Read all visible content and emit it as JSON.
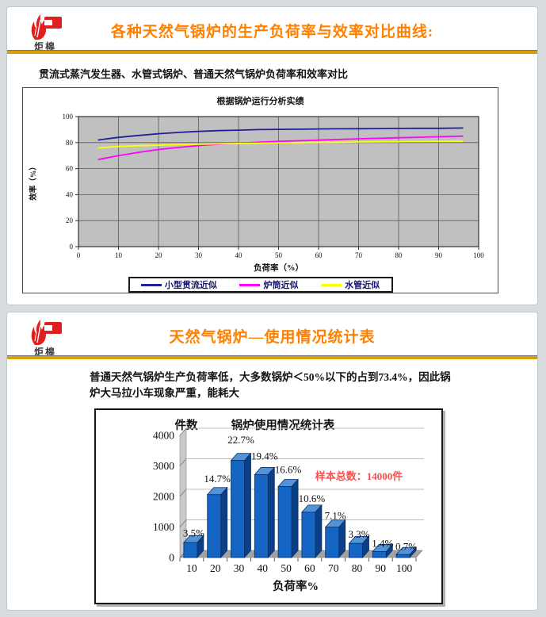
{
  "page": {
    "background": "#d9dcde"
  },
  "brand": {
    "logo_text": "炬槔",
    "logo_color": "#e01f1f"
  },
  "slide1": {
    "title": "各种天然气锅炉的生产负荷率与效率对比曲线:",
    "title_color": "#ff8000",
    "subtitle": "贯流式蒸汽发生器、水管式锅炉、普通天然气锅炉负荷率和效率对比"
  },
  "slide2": {
    "title": "天然气锅炉—使用情况统计表",
    "title_color": "#ff8000",
    "body_lines": [
      "普通天然气锅炉生产负荷率低，大多数锅炉＜50%以下的占到73.4%，因此锅",
      "炉大马拉小车现象严重，能耗大"
    ]
  },
  "chart_data": [
    {
      "type": "line",
      "title": "根据锅炉运行分析实绩",
      "xlabel": "负荷率（%）",
      "ylabel": "效率（%）",
      "xlim": [
        0,
        100
      ],
      "ylim": [
        0,
        100
      ],
      "x_ticks": [
        0,
        10,
        20,
        30,
        40,
        50,
        60,
        70,
        80,
        90,
        100
      ],
      "y_ticks": [
        0,
        20,
        40,
        60,
        80,
        100
      ],
      "plot_bg": "#c0c0c0",
      "grid": true,
      "legend_position": "bottom",
      "x": [
        5,
        10,
        15,
        20,
        25,
        30,
        35,
        40,
        45,
        50,
        55,
        60,
        65,
        70,
        75,
        80,
        85,
        90,
        96
      ],
      "series": [
        {
          "name": "小型贯流近似",
          "color": "#1f1f9c",
          "values": [
            82,
            84,
            85.5,
            86.8,
            87.8,
            88.6,
            89.2,
            89.6,
            90,
            90.2,
            90.3,
            90.5,
            90.6,
            90.7,
            90.8,
            90.9,
            91,
            91,
            91.2
          ]
        },
        {
          "name": "炉筒近似",
          "color": "#ff00ff",
          "values": [
            67,
            70,
            72.5,
            74.7,
            76.3,
            77.7,
            78.8,
            79.6,
            80.3,
            80.9,
            81.4,
            81.9,
            82.4,
            82.9,
            83.3,
            83.7,
            84.1,
            84.5,
            85
          ]
        },
        {
          "name": "水管近似",
          "color": "#ffff00",
          "values": [
            76,
            77,
            77.6,
            78,
            78.4,
            78.7,
            79,
            79.3,
            79.5,
            79.8,
            80,
            80.2,
            80.3,
            80.5,
            80.6,
            80.7,
            80.8,
            80.9,
            81
          ]
        }
      ]
    },
    {
      "type": "bar",
      "style": "3d",
      "title": "锅炉使用情况统计表",
      "xlabel": "负荷率%",
      "ylabel": "件数",
      "categories": [
        "10",
        "20",
        "30",
        "40",
        "50",
        "60",
        "70",
        "80",
        "90",
        "100"
      ],
      "values": [
        490,
        2058,
        3178,
        2716,
        2324,
        1484,
        994,
        462,
        196,
        98
      ],
      "percent_labels": [
        "3.5%",
        "14.7%",
        "22.7%",
        "19.4%",
        "16.6%",
        "10.6%",
        "7.1%",
        "3.3%",
        "1.4%",
        "0.7%"
      ],
      "annotation": "样本总数：14000件",
      "annotation_color": "#fb4f4f",
      "ylim": [
        0,
        4000
      ],
      "y_ticks": [
        0,
        1000,
        2000,
        3000,
        4000
      ],
      "bar_colors": {
        "front": "#1565c4",
        "top": "#5493d8",
        "side": "#0c3f86",
        "outline": "#082f66"
      }
    }
  ]
}
